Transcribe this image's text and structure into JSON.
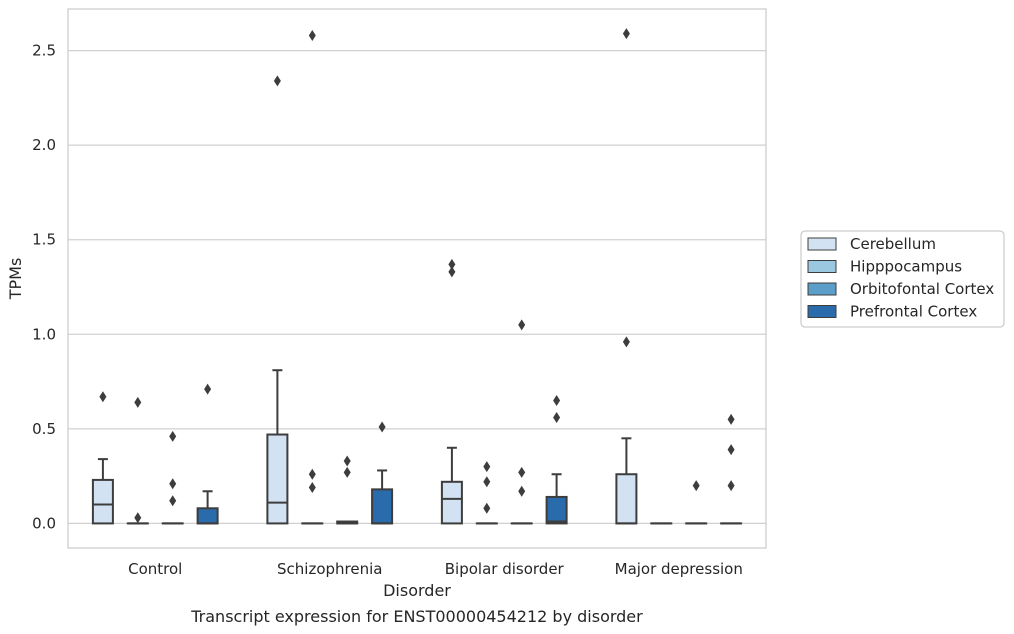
{
  "chart_data": {
    "type": "box",
    "title": "",
    "caption": "Transcript expression for ENST00000454212 by disorder",
    "xlabel": "Disorder",
    "ylabel": "TPMs",
    "ylim": [
      -0.13,
      2.72
    ],
    "yticks": [
      0.0,
      0.5,
      1.0,
      1.5,
      2.0,
      2.5
    ],
    "ytick_labels": [
      "0.0",
      "0.5",
      "1.0",
      "1.5",
      "2.0",
      "2.5"
    ],
    "grid": true,
    "legend_position": "right",
    "categories": [
      "Control",
      "Schizophrenia",
      "Bipolar disorder",
      "Major depression"
    ],
    "series": [
      {
        "name": "Cerebellum",
        "color": "#d2e2f2",
        "boxes": [
          {
            "min": 0.0,
            "q1": 0.0,
            "median": 0.1,
            "q3": 0.23,
            "max": 0.34,
            "outliers": [
              0.67
            ]
          },
          {
            "min": 0.0,
            "q1": 0.0,
            "median": 0.11,
            "q3": 0.47,
            "max": 0.81,
            "outliers": [
              2.34
            ]
          },
          {
            "min": 0.0,
            "q1": 0.0,
            "median": 0.13,
            "q3": 0.22,
            "max": 0.4,
            "outliers": [
              1.33,
              1.37
            ]
          },
          {
            "min": 0.0,
            "q1": 0.0,
            "median": 0.0,
            "q3": 0.26,
            "max": 0.45,
            "outliers": [
              0.96,
              2.59
            ]
          }
        ]
      },
      {
        "name": "Hipppocampus",
        "color": "#9ac8e0",
        "boxes": [
          {
            "min": 0.0,
            "q1": 0.0,
            "median": 0.0,
            "q3": 0.0,
            "max": 0.0,
            "outliers": [
              0.03,
              0.64
            ]
          },
          {
            "min": 0.0,
            "q1": 0.0,
            "median": 0.0,
            "q3": 0.0,
            "max": 0.0,
            "outliers": [
              0.19,
              0.26,
              2.58
            ]
          },
          {
            "min": 0.0,
            "q1": 0.0,
            "median": 0.0,
            "q3": 0.0,
            "max": 0.0,
            "outliers": [
              0.08,
              0.22,
              0.3
            ]
          },
          {
            "min": 0.0,
            "q1": 0.0,
            "median": 0.0,
            "q3": 0.0,
            "max": 0.0,
            "outliers": []
          }
        ]
      },
      {
        "name": "Orbitofontal Cortex",
        "color": "#5a9ec9",
        "boxes": [
          {
            "min": 0.0,
            "q1": 0.0,
            "median": 0.0,
            "q3": 0.0,
            "max": 0.0,
            "outliers": [
              0.12,
              0.21,
              0.46
            ]
          },
          {
            "min": 0.0,
            "q1": 0.0,
            "median": 0.0,
            "q3": 0.01,
            "max": 0.01,
            "outliers": [
              0.27,
              0.33
            ]
          },
          {
            "min": 0.0,
            "q1": 0.0,
            "median": 0.0,
            "q3": 0.0,
            "max": 0.0,
            "outliers": [
              0.17,
              0.27,
              1.05
            ]
          },
          {
            "min": 0.0,
            "q1": 0.0,
            "median": 0.0,
            "q3": 0.0,
            "max": 0.0,
            "outliers": [
              0.2
            ]
          }
        ]
      },
      {
        "name": "Prefrontal Cortex",
        "color": "#2a6bab",
        "boxes": [
          {
            "min": 0.0,
            "q1": 0.0,
            "median": 0.0,
            "q3": 0.08,
            "max": 0.17,
            "outliers": [
              0.71
            ]
          },
          {
            "min": 0.0,
            "q1": 0.0,
            "median": 0.0,
            "q3": 0.18,
            "max": 0.28,
            "outliers": [
              0.51
            ]
          },
          {
            "min": 0.0,
            "q1": 0.0,
            "median": 0.01,
            "q3": 0.14,
            "max": 0.26,
            "outliers": [
              0.56,
              0.65
            ]
          },
          {
            "min": 0.0,
            "q1": 0.0,
            "median": 0.0,
            "q3": 0.0,
            "max": 0.0,
            "outliers": [
              0.2,
              0.39,
              0.55
            ]
          }
        ]
      }
    ]
  }
}
